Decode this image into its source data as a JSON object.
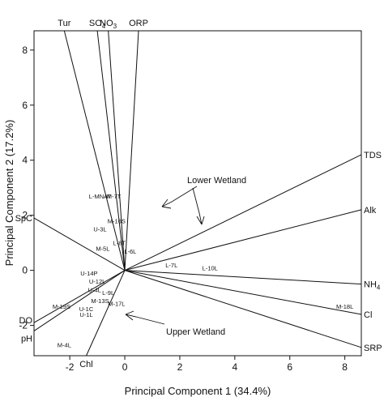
{
  "chart_data": {
    "type": "scatter",
    "subtype": "pca-biplot",
    "xlabel": "Principal Component 1 (34.4%)",
    "ylabel": "Principal Component 2 (17.2%)",
    "xlim": [
      -3.3,
      8.6
    ],
    "ylim": [
      -3.1,
      8.7
    ],
    "xticks": [
      -2,
      0,
      2,
      4,
      6,
      8
    ],
    "yticks": [
      -2,
      0,
      2,
      4,
      6,
      8
    ],
    "vectors": [
      {
        "label": "Tur",
        "x": -2.2,
        "y": 8.7
      },
      {
        "label": "SO4",
        "label_main": "SO",
        "label_sub": "4",
        "x": -1.0,
        "y": 8.7
      },
      {
        "label": "NO3",
        "label_main": "NO",
        "label_sub": "3",
        "x": -0.6,
        "y": 8.7
      },
      {
        "label": "ORP",
        "x": 0.5,
        "y": 8.7
      },
      {
        "label": "TDS",
        "x": 8.6,
        "y": 4.2
      },
      {
        "label": "Alk",
        "x": 8.6,
        "y": 2.2
      },
      {
        "label": "NH4",
        "label_main": "NH",
        "label_sub": "4",
        "x": 8.6,
        "y": -0.5
      },
      {
        "label": "Cl",
        "x": 8.6,
        "y": -1.6
      },
      {
        "label": "SRP",
        "x": 8.6,
        "y": -2.8
      },
      {
        "label": "SpC",
        "x": -3.3,
        "y": 1.9
      },
      {
        "label": "DO",
        "x": -3.3,
        "y": -1.9
      },
      {
        "label": "pH",
        "x": -3.3,
        "y": -2.2
      },
      {
        "label": "Chl",
        "x": -1.4,
        "y": -3.1
      }
    ],
    "sites": [
      {
        "label": "L-MNAT",
        "x": -0.9,
        "y": 2.7
      },
      {
        "label": "M-7T",
        "x": -0.4,
        "y": 2.7
      },
      {
        "label": "U-3L",
        "x": -0.9,
        "y": 1.5
      },
      {
        "label": "M-16S",
        "x": -0.3,
        "y": 1.8
      },
      {
        "label": "M-5L",
        "x": -0.8,
        "y": 0.8
      },
      {
        "label": "L-8T",
        "x": -0.2,
        "y": 1.0
      },
      {
        "label": "L-6L",
        "x": 0.2,
        "y": 0.7
      },
      {
        "label": "L-7L",
        "x": 1.7,
        "y": 0.2
      },
      {
        "label": "L-10L",
        "x": 3.1,
        "y": 0.1
      },
      {
        "label": "U-14P",
        "x": -1.3,
        "y": -0.1
      },
      {
        "label": "U-12L",
        "x": -1.0,
        "y": -0.4
      },
      {
        "label": "U-4L",
        "x": -1.1,
        "y": -0.7
      },
      {
        "label": "L-9L",
        "x": -0.6,
        "y": -0.8
      },
      {
        "label": "M-13S",
        "x": -0.9,
        "y": -1.1
      },
      {
        "label": "M-17L",
        "x": -0.3,
        "y": -1.2
      },
      {
        "label": "M-19S",
        "x": -2.3,
        "y": -1.3
      },
      {
        "label": "U-1C",
        "x": -1.4,
        "y": -1.4
      },
      {
        "label": "U-1L",
        "x": -1.4,
        "y": -1.6
      },
      {
        "label": "M-4L",
        "x": -2.2,
        "y": -2.7
      },
      {
        "label": "M-18L",
        "x": 8.0,
        "y": -1.3
      }
    ],
    "annotations": [
      {
        "label": "Lower Wetland",
        "x": 2.6,
        "y": 3.3
      },
      {
        "label": "Upper Wetland",
        "x": 2.6,
        "y": -2.0
      }
    ]
  }
}
